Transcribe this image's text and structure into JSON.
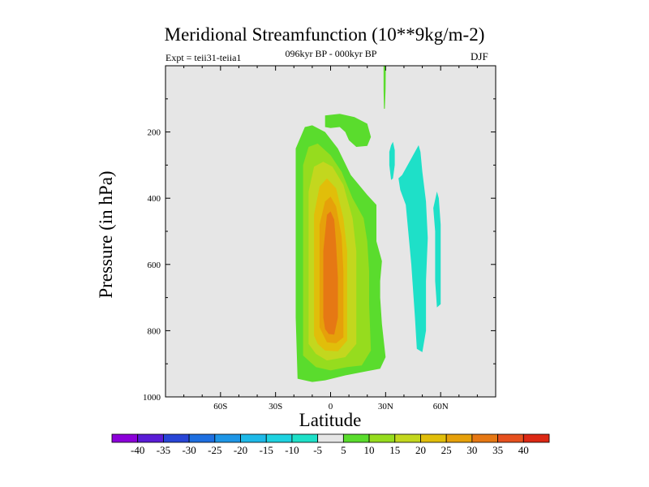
{
  "chart_data": {
    "type": "contour",
    "title": "Meridional Streamfunction (10**9kg/m-2)",
    "subtitle": "096kyr BP - 000kyr BP",
    "left_label": "Expt = teii31-teiia1",
    "right_label": "DJF",
    "xlabel": "Latitude",
    "ylabel": "Pressure (in hPa)",
    "xlim": [
      -90,
      90
    ],
    "ylim": [
      1000,
      0
    ],
    "y_reversed": true,
    "x_ticks": [
      {
        "value": -60,
        "label": "60S"
      },
      {
        "value": -30,
        "label": "30S"
      },
      {
        "value": 0,
        "label": "0"
      },
      {
        "value": 30,
        "label": "30N"
      },
      {
        "value": 60,
        "label": "60N"
      }
    ],
    "y_ticks": [
      200,
      400,
      600,
      800,
      1000
    ],
    "background_color": "#e6e6e6",
    "colorbar": {
      "levels": [
        -40,
        -35,
        -30,
        -25,
        -20,
        -15,
        -10,
        -5,
        5,
        10,
        15,
        20,
        25,
        30,
        35,
        40
      ],
      "colors": [
        "#8c00d9",
        "#5a1cd6",
        "#2845d6",
        "#1e6fe0",
        "#1e96e6",
        "#1eb9e8",
        "#1ed2e0",
        "#1ee0c8",
        "#e6e6e6",
        "#5adc2d",
        "#96dc1e",
        "#c3d71e",
        "#e1be0a",
        "#e6a00a",
        "#e67814",
        "#e6501e",
        "#dc2814"
      ]
    },
    "regions": [
      {
        "level": 5,
        "color": "#5adc2d",
        "points": [
          [
            -18,
            945
          ],
          [
            -19,
            760
          ],
          [
            -19,
            250
          ],
          [
            -14,
            185
          ],
          [
            -10,
            180
          ],
          [
            -3,
            200
          ],
          [
            4,
            250
          ],
          [
            11,
            330
          ],
          [
            20,
            390
          ],
          [
            25,
            420
          ],
          [
            25,
            530
          ],
          [
            28,
            590
          ],
          [
            27,
            650
          ],
          [
            27,
            700
          ],
          [
            28,
            780
          ],
          [
            30,
            880
          ],
          [
            27,
            915
          ],
          [
            20,
            922
          ],
          [
            8,
            935
          ],
          [
            -3,
            950
          ],
          [
            -10,
            955
          ]
        ]
      },
      {
        "level": 5,
        "color": "#5adc2d",
        "points": [
          [
            -3,
            150
          ],
          [
            -3,
            185
          ],
          [
            0,
            188
          ],
          [
            5,
            185
          ],
          [
            8,
            200
          ],
          [
            10,
            225
          ],
          [
            14,
            245
          ],
          [
            20,
            242
          ],
          [
            22,
            215
          ],
          [
            20,
            175
          ],
          [
            13,
            155
          ],
          [
            5,
            145
          ]
        ]
      },
      {
        "level": 5,
        "color": "#5adc2d",
        "points": [
          [
            28.9,
            0
          ],
          [
            28.9,
            70
          ],
          [
            29.1,
            130
          ],
          [
            29.6,
            130
          ],
          [
            30.0,
            70
          ],
          [
            30.1,
            0
          ]
        ]
      },
      {
        "level": -5,
        "color": "#1ee0c8",
        "points": [
          [
            37,
            340
          ],
          [
            38,
            375
          ],
          [
            41,
            420
          ],
          [
            44,
            600
          ],
          [
            46,
            760
          ],
          [
            47,
            855
          ],
          [
            50,
            865
          ],
          [
            52,
            800
          ],
          [
            52,
            650
          ],
          [
            53,
            520
          ],
          [
            52,
            410
          ],
          [
            50,
            320
          ],
          [
            49,
            260
          ],
          [
            48,
            240
          ],
          [
            44,
            280
          ],
          [
            39,
            330
          ]
        ]
      },
      {
        "level": -5,
        "color": "#1ee0c8",
        "points": [
          [
            32,
            260
          ],
          [
            32,
            300
          ],
          [
            33,
            345
          ],
          [
            34,
            340
          ],
          [
            35,
            300
          ],
          [
            35,
            255
          ],
          [
            34,
            230
          ],
          [
            33,
            240
          ]
        ]
      },
      {
        "level": -5,
        "color": "#1ee0c8",
        "points": [
          [
            56,
            430
          ],
          [
            57,
            500
          ],
          [
            57,
            650
          ],
          [
            58,
            730
          ],
          [
            60,
            720
          ],
          [
            60,
            600
          ],
          [
            60,
            480
          ],
          [
            59,
            400
          ],
          [
            58,
            380
          ]
        ]
      },
      {
        "level": 10,
        "color": "#96dc1e",
        "points": [
          [
            -15,
            875
          ],
          [
            -15,
            500
          ],
          [
            -15,
            300
          ],
          [
            -12,
            245
          ],
          [
            -7,
            235
          ],
          [
            0,
            270
          ],
          [
            6,
            320
          ],
          [
            12,
            400
          ],
          [
            18,
            460
          ],
          [
            20,
            530
          ],
          [
            21,
            620
          ],
          [
            21,
            720
          ],
          [
            22,
            860
          ],
          [
            17,
            905
          ],
          [
            9,
            910
          ],
          [
            0,
            920
          ],
          [
            -8,
            910
          ]
        ]
      },
      {
        "level": 15,
        "color": "#c3d71e",
        "points": [
          [
            -12,
            840
          ],
          [
            -12,
            380
          ],
          [
            -9,
            305
          ],
          [
            -4,
            290
          ],
          [
            1,
            305
          ],
          [
            7,
            360
          ],
          [
            12,
            460
          ],
          [
            14,
            560
          ],
          [
            14,
            700
          ],
          [
            14,
            840
          ],
          [
            8,
            880
          ],
          [
            -2,
            890
          ],
          [
            -8,
            870
          ]
        ]
      },
      {
        "level": 20,
        "color": "#e1be0a",
        "points": [
          [
            -9,
            815
          ],
          [
            -9,
            450
          ],
          [
            -6,
            365
          ],
          [
            -2,
            340
          ],
          [
            3,
            370
          ],
          [
            7,
            460
          ],
          [
            9,
            560
          ],
          [
            9,
            720
          ],
          [
            9,
            830
          ],
          [
            4,
            862
          ],
          [
            -3,
            860
          ],
          [
            -7,
            840
          ]
        ]
      },
      {
        "level": 25,
        "color": "#e6a00a",
        "points": [
          [
            -6,
            790
          ],
          [
            -6,
            480
          ],
          [
            -3,
            410
          ],
          [
            0,
            395
          ],
          [
            3,
            425
          ],
          [
            6,
            515
          ],
          [
            7,
            620
          ],
          [
            7,
            750
          ],
          [
            7,
            820
          ],
          [
            3,
            838
          ],
          [
            -2,
            835
          ]
        ]
      },
      {
        "level": 30,
        "color": "#e67814",
        "points": [
          [
            -4,
            760
          ],
          [
            -4,
            560
          ],
          [
            -2,
            450
          ],
          [
            0,
            440
          ],
          [
            2,
            465
          ],
          [
            3,
            540
          ],
          [
            4,
            640
          ],
          [
            4,
            760
          ],
          [
            2,
            812
          ],
          [
            -1,
            810
          ],
          [
            -3,
            795
          ]
        ]
      }
    ]
  }
}
